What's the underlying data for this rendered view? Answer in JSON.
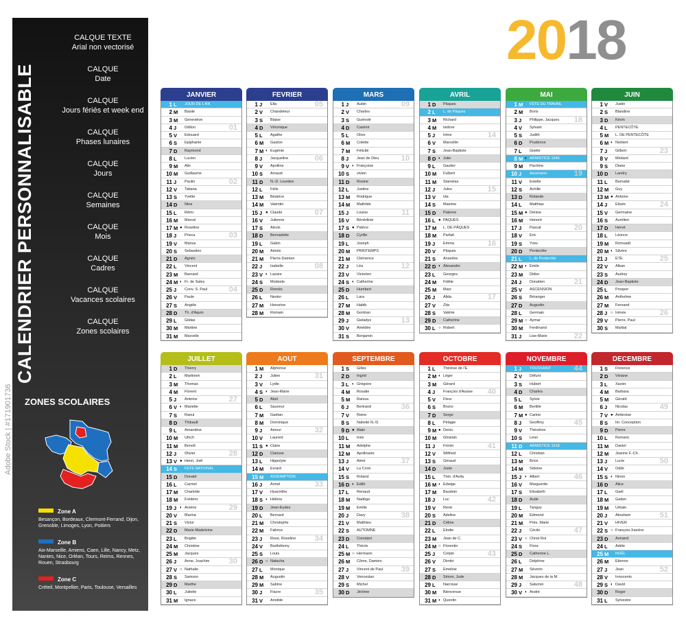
{
  "title": "CALENDRIER PERSONNALISABLE",
  "year": {
    "left": "20",
    "right": "18"
  },
  "layers": [
    {
      "title": "CALQUE TEXTE",
      "sub": "Arial non vectorisé"
    },
    {
      "title": "CALQUE",
      "sub": "Date"
    },
    {
      "title": "CALQUE",
      "sub": "Jours fériés et week end"
    },
    {
      "title": "CALQUE",
      "sub": "Phases lunaires"
    },
    {
      "title": "CALQUE",
      "sub": "Jours"
    },
    {
      "title": "CALQUE",
      "sub": "Semaines"
    },
    {
      "title": "CALQUE",
      "sub": "Mois"
    },
    {
      "title": "CALQUE",
      "sub": "Cadres"
    },
    {
      "title": "CALQUE",
      "sub": "Vacances scolaires"
    },
    {
      "title": "CALQUE",
      "sub": "Zones scolaires"
    }
  ],
  "zones": {
    "title": "ZONES SCOLAIRES",
    "items": [
      {
        "name": "Zone A",
        "color": "#F5E000",
        "cities": "Besançon, Bordeaux, Clermont-Ferrand, Dijon, Grenoble, Limoges, Lyon, Poitiers"
      },
      {
        "name": "Zone B",
        "color": "#1F6FC1",
        "cities": "Aix-Marseille, Amiens, Caen, Lille, Nancy, Metz, Nantes, Nice, Orléan, Tours, Reims, Rennes, Rouen, Strasbourg"
      },
      {
        "name": "Zone C",
        "color": "#E42020",
        "cities": "Créteil, Montpellier, Paris, Toulouse, Versailles"
      }
    ]
  },
  "watermark": "Adobe Stock | #171901736",
  "months": [
    {
      "name": "JANVIER",
      "color": "#2C3F8E",
      "start": 1,
      "days": 31,
      "saints": [
        "JOUR DE L'AN",
        "Basile",
        "Geneviève",
        "Odilon",
        "Edouard",
        "Epiphanie",
        "Raymond",
        "Lucien",
        "Alix",
        "Guillaume",
        "Paulin",
        "Tatiana",
        "Yvette",
        "Nina",
        "Rémi",
        "Marcel",
        "Roseline",
        "Prisca",
        "Marius",
        "Sebastien",
        "Agnès",
        "Vincent",
        "Barnard",
        "Fr. de Sales",
        "Conv. S. Paul",
        "Paule",
        "Angèle",
        "Th. d'Aquin",
        "Gildas",
        "Martine",
        "Marcelle"
      ],
      "holidays": [
        1
      ],
      "moons": {
        "17": "●",
        "24": "◐"
      }
    },
    {
      "name": "FEVRIER",
      "color": "#2C3F8E",
      "start": 4,
      "days": 28,
      "saints": [
        "Ella",
        "Chandeleur",
        "Blaise",
        "Véronique",
        "Agathe",
        "Gaston",
        "Eugénie",
        "Jacqueline",
        "Apolline",
        "Arnaud",
        "N.-D. Lourdes",
        "Félix",
        "Béatrice",
        "Valentin",
        "Claude",
        "Julienne",
        "Alexis",
        "Bernadette",
        "Gabin",
        "Aimée",
        "Pierre-Damien",
        "Isabelle",
        "Lazare",
        "Modeste",
        "Roméo",
        "Nestor",
        "Honorine",
        "Romain"
      ],
      "holidays": [],
      "moons": {
        "7": "◐",
        "15": "●",
        "23": "◐"
      }
    },
    {
      "name": "MARS",
      "color": "#1E6FB3",
      "start": 4,
      "days": 31,
      "saints": [
        "Aubin",
        "Charles",
        "Guénolé",
        "Casimir",
        "Olive",
        "Colette",
        "Félicité",
        "Jean de Dieu",
        "Françoise",
        "vivien",
        "Rosine",
        "Justine",
        "Rodrigue",
        "Mathilde",
        "Louise",
        "Bénédicte",
        "Patrice",
        "Cyrille",
        "Joseph",
        "PRINTEMPS",
        "Clémence",
        "Léa",
        "Victorien",
        "Catherine",
        "Humbert",
        "Lara",
        "Habib",
        "Gontran",
        "Gwladys",
        "Amédée",
        "Benjamin"
      ],
      "holidays": [],
      "moons": {
        "9": "◐",
        "17": "●",
        "24": "◐"
      }
    },
    {
      "name": "AVRIL",
      "color": "#18A396",
      "start": 7,
      "days": 30,
      "saints": [
        "Pâques",
        "L. de Pâques",
        "Richard",
        "Isidore",
        "Irène",
        "Marcellin",
        "Jean-Baptiste",
        "Julie",
        "Gautier",
        "Fulbert",
        "Stanislas",
        "Jules",
        "Ida",
        "Maxime",
        "Paterne",
        "PAQUES",
        "L. DE PÂQUES",
        "Parfait",
        "Emma",
        "Pâques",
        "Anselme",
        "Alexandre",
        "Georges",
        "Fidèle",
        "Marc",
        "Alida",
        "Zita",
        "Valérie",
        "Catherine",
        "Robert"
      ],
      "holidays": [
        2
      ],
      "moons": {
        "8": "◐",
        "16": "●",
        "22": "◐",
        "30": "○"
      }
    },
    {
      "name": "MAI",
      "color": "#3DAA3F",
      "start": 2,
      "days": 31,
      "saints": [
        "FÊTE DU TRAVAIL",
        "Boris",
        "Philippe, Jacques",
        "Sylvain",
        "Judith",
        "Prudence",
        "Gisèle",
        "ARMISTICE 1945",
        "Pacôme",
        "Ascension",
        "Estelle",
        "Achille",
        "Rolande",
        "Matthias",
        "Denise",
        "Honoré",
        "Pascal",
        "Eric",
        "Yves",
        "Pentecôte",
        "L. de Pentecôte",
        "Emile",
        "Didier",
        "Donatien",
        "ASCENSION",
        "Béranger",
        "Augustin",
        "Germain",
        "Aymar",
        "Ferdinand",
        "Lise-Marie"
      ],
      "holidays": [
        1,
        8,
        10,
        21
      ],
      "moons": {
        "8": "◐",
        "15": "●",
        "22": "◐",
        "29": "○"
      }
    },
    {
      "name": "JUIN",
      "color": "#1F8A3D",
      "start": 5,
      "days": 30,
      "saints": [
        "Justin",
        "Blandine",
        "Kévin",
        "PENTECÔTE",
        "L. DE PENTECÔTE",
        "Norbert",
        "Gilbert",
        "Médard",
        "Diane",
        "Landry",
        "Barnabé",
        "Guy",
        "Antoine",
        "Elisée",
        "Germaine",
        "Aurélien",
        "Hervé",
        "Léonce",
        "Romuald",
        "Silvère",
        "ETE",
        "Alban",
        "Audrey",
        "Jean-Baptiste",
        "Prosper",
        "Anthelme",
        "Fernand",
        "Irénée",
        "Pierre, Paul",
        "Martial"
      ],
      "holidays": [],
      "moons": {
        "6": "◐",
        "13": "●",
        "20": "◐",
        "28": "○"
      }
    },
    {
      "name": "JUILLET",
      "color": "#B5BE19",
      "start": 7,
      "days": 31,
      "saints": [
        "Thierry",
        "Martinien",
        "Thomas",
        "Florent",
        "Antoine",
        "Mariette",
        "Raoul",
        "Thibault",
        "Amandine",
        "Ulrich",
        "Benoît",
        "Olivier",
        "Henri, Joël",
        "FETE NATIONAL",
        "Donald",
        "Carmel",
        "Charlotte",
        "Frédéric",
        "Arsène",
        "Marina",
        "Victor",
        "Marie-Madeleine",
        "Brigitte",
        "Christine",
        "Jacques",
        "Anne, Joachim",
        "Nathalie",
        "Samson",
        "Marthe",
        "Juliette",
        "Ignace"
      ],
      "holidays": [
        14
      ],
      "moons": {
        "6": "◐",
        "13": "●",
        "19": "◐",
        "27": "○"
      }
    },
    {
      "name": "AOUT",
      "color": "#EE7A1C",
      "start": 3,
      "days": 31,
      "saints": [
        "Alphonse",
        "Julien",
        "Lydie",
        "Jean-Marie",
        "Abel",
        "Sauveur",
        "Gaëtan",
        "Dominique",
        "Amour",
        "Laurent",
        "Claire",
        "Clarisse",
        "Hippolyte",
        "Evrard",
        "ASSOMPTION",
        "Armel",
        "Hyacinthe",
        "Hélène",
        "Jean-Eudes",
        "Bernard",
        "Christophe",
        "Fabrice",
        "Rose, Roseline",
        "Barthélemy",
        "Louis",
        "Natacha",
        "Monique",
        "Augustin",
        "Sabine",
        "Fiacre",
        "Aristide"
      ],
      "holidays": [
        15
      ],
      "moons": {
        "4": "◐",
        "11": "●",
        "18": "◐",
        "26": "○"
      }
    },
    {
      "name": "SEPTEMBRE",
      "color": "#E25A1E",
      "start": 6,
      "days": 30,
      "saints": [
        "Gilles",
        "Ingrid",
        "Grégoire",
        "Rosalie",
        "Raïssa",
        "Bertrand",
        "Reine",
        "Nativité N.-D.",
        "Alain",
        "Inès",
        "Adelphe",
        "Apollinaire",
        "Aimé",
        "La Croix",
        "Roland",
        "Edith",
        "Renaud",
        "Nadège",
        "Emilie",
        "Davy",
        "Matthieu",
        "AUTOMNE",
        "Constant",
        "Thècle",
        "Hermann",
        "Côme, Damien",
        "Vincent de Paul",
        "Venceslas",
        "Michel",
        "Jérôme"
      ],
      "holidays": [],
      "moons": {
        "3": "◐",
        "9": "●",
        "16": "◐",
        "25": "○"
      }
    },
    {
      "name": "OCTOBRE",
      "color": "#E32C25",
      "start": 1,
      "days": 31,
      "saints": [
        "Thérèse de l'E.",
        "Léger",
        "Gérard",
        "François d'Assise",
        "Fleur",
        "Bruno",
        "Serge",
        "Pélagie",
        "Denis",
        "Ghislain",
        "Firmin",
        "Wilfried",
        "Géraud",
        "Juste",
        "Thér. d'Avila",
        "Edwige",
        "Baudoin",
        "Luc",
        "René",
        "Adeline",
        "Céline",
        "Elodie",
        "Jean de C.",
        "Florentin",
        "Crépin",
        "Dimitri",
        "Emeline",
        "Simon, Jude",
        "Narcisse",
        "Bienvenue",
        "Quentin"
      ],
      "holidays": [],
      "moons": {
        "2": "◐",
        "9": "●",
        "16": "◐",
        "24": "○",
        "31": "◐"
      }
    },
    {
      "name": "NOVEMBRE",
      "color": "#DD1E2A",
      "start": 4,
      "days": 30,
      "saints": [
        "TOUSSAINT",
        "Défunt",
        "Hubert",
        "Charles",
        "Sylvie",
        "Bertille",
        "Carine",
        "Geoffroy",
        "Théodore",
        "Léon",
        "ARMISTICE 1918",
        "Christian",
        "Brice",
        "Sidoine",
        "Albert",
        "Marguerite",
        "Elisabeth",
        "Aude",
        "Tanguy",
        "Edmond",
        "Prés. Marie",
        "Cécile",
        "Christ Roi",
        "Flora",
        "Catherine L.",
        "Delphine",
        "Séverin",
        "Jacques de la M.",
        "Saturnin",
        "André"
      ],
      "holidays": [
        1,
        11
      ],
      "moons": {
        "7": "●",
        "15": "◐",
        "23": "○",
        "30": "◐"
      }
    },
    {
      "name": "DECEMBRE",
      "color": "#C1272D",
      "start": 6,
      "days": 31,
      "saints": [
        "Florence",
        "Viviane",
        "Xavier",
        "Barbara",
        "Gérald",
        "Nicolas",
        "Ambroise",
        "Im. Conception",
        "Pierre",
        "Romaric",
        "Daniel",
        "Jeanne F.-Ch.",
        "Lucie",
        "Odile",
        "Ninon",
        "Alice",
        "Gaël",
        "Gatien",
        "Urbain",
        "Abraham",
        "HIVER",
        "François-Xavière",
        "Armand",
        "Adèle",
        "NOËL",
        "Etienne",
        "Jean",
        "Innocents",
        "David",
        "Roger",
        "Sylvestre"
      ],
      "holidays": [
        25
      ],
      "moons": {
        "7": "●",
        "15": "◐",
        "22": "○",
        "29": "◐"
      }
    }
  ]
}
